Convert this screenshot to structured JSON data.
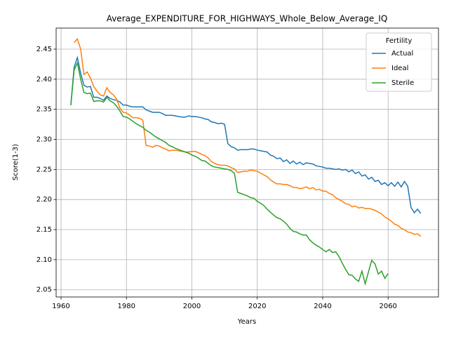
{
  "chart_data": {
    "type": "line",
    "title": "Average_EXPENDITURE_FOR_HIGHWAYS_Whole_Below_Average_IQ",
    "x_label": "Years",
    "y_label": "Score(1-3)",
    "legend_title": "Fertility",
    "legend": "upper right",
    "grid": true,
    "x": [
      1963,
      1964,
      1965,
      1966,
      1967,
      1968,
      1969,
      1970,
      1971,
      1972,
      1973,
      1974,
      1975,
      1976,
      1977,
      1978,
      1979,
      1980,
      1981,
      1982,
      1983,
      1984,
      1985,
      1986,
      1987,
      1988,
      1989,
      1990,
      1991,
      1992,
      1993,
      1994,
      1995,
      1996,
      1997,
      1998,
      1999,
      2000,
      2001,
      2002,
      2003,
      2004,
      2005,
      2006,
      2007,
      2008,
      2009,
      2010,
      2011,
      2012,
      2013,
      2014,
      2015,
      2016,
      2017,
      2018,
      2019,
      2020,
      2021,
      2022,
      2023,
      2024,
      2025,
      2026,
      2027,
      2028,
      2029,
      2030,
      2031,
      2032,
      2033,
      2034,
      2035,
      2036,
      2037,
      2038,
      2039,
      2040,
      2041,
      2042,
      2043,
      2044,
      2045,
      2046,
      2047,
      2048,
      2049,
      2050,
      2051,
      2052,
      2053,
      2054,
      2055,
      2056,
      2057,
      2058,
      2059,
      2060,
      2061,
      2062,
      2063,
      2064,
      2065,
      2066,
      2067,
      2068,
      2069,
      2070
    ],
    "series": [
      {
        "name": "Actual",
        "color": "#1f77b4",
        "values": [
          2.357,
          2.42,
          2.436,
          2.41,
          2.39,
          2.387,
          2.388,
          2.37,
          2.37,
          2.368,
          2.365,
          2.372,
          2.368,
          2.366,
          2.365,
          2.362,
          2.357,
          2.357,
          2.355,
          2.354,
          2.354,
          2.354,
          2.354,
          2.349,
          2.347,
          2.345,
          2.345,
          2.345,
          2.343,
          2.34,
          2.34,
          2.34,
          2.339,
          2.338,
          2.337,
          2.337,
          2.339,
          2.338,
          2.338,
          2.337,
          2.336,
          2.334,
          2.333,
          2.329,
          2.328,
          2.326,
          2.327,
          2.325,
          2.293,
          2.288,
          2.286,
          2.282,
          2.283,
          2.283,
          2.283,
          2.284,
          2.284,
          2.282,
          2.281,
          2.28,
          2.279,
          2.274,
          2.272,
          2.268,
          2.269,
          2.263,
          2.266,
          2.26,
          2.264,
          2.259,
          2.262,
          2.258,
          2.261,
          2.26,
          2.259,
          2.256,
          2.255,
          2.254,
          2.252,
          2.252,
          2.251,
          2.25,
          2.251,
          2.249,
          2.25,
          2.246,
          2.249,
          2.243,
          2.246,
          2.239,
          2.241,
          2.234,
          2.237,
          2.23,
          2.232,
          2.225,
          2.228,
          2.223,
          2.228,
          2.222,
          2.229,
          2.221,
          2.23,
          2.222,
          2.187,
          2.178,
          2.184,
          2.177
        ]
      },
      {
        "name": "Ideal",
        "color": "#ff7f0e",
        "values": [
          null,
          2.461,
          2.467,
          2.45,
          2.408,
          2.412,
          2.402,
          2.388,
          2.38,
          2.374,
          2.372,
          2.386,
          2.378,
          2.374,
          2.367,
          2.352,
          2.345,
          2.344,
          2.34,
          2.336,
          2.336,
          2.335,
          2.332,
          2.29,
          2.289,
          2.287,
          2.29,
          2.289,
          2.286,
          2.284,
          2.281,
          2.282,
          2.282,
          2.281,
          2.28,
          2.279,
          2.279,
          2.28,
          2.28,
          2.278,
          2.275,
          2.273,
          2.269,
          2.263,
          2.26,
          2.258,
          2.257,
          2.257,
          2.256,
          2.253,
          2.251,
          2.245,
          2.246,
          2.247,
          2.247,
          2.249,
          2.248,
          2.247,
          2.244,
          2.241,
          2.238,
          2.233,
          2.229,
          2.226,
          2.226,
          2.225,
          2.225,
          2.223,
          2.22,
          2.22,
          2.218,
          2.219,
          2.221,
          2.218,
          2.22,
          2.216,
          2.217,
          2.214,
          2.214,
          2.21,
          2.208,
          2.203,
          2.2,
          2.197,
          2.193,
          2.192,
          2.188,
          2.189,
          2.186,
          2.187,
          2.185,
          2.185,
          2.184,
          2.182,
          2.179,
          2.176,
          2.171,
          2.168,
          2.164,
          2.159,
          2.157,
          2.152,
          2.15,
          2.146,
          2.145,
          2.142,
          2.143,
          2.139
        ]
      },
      {
        "name": "Sterile",
        "color": "#2ca02c",
        "values": [
          2.357,
          2.415,
          2.427,
          2.4,
          2.378,
          2.376,
          2.377,
          2.363,
          2.364,
          2.364,
          2.362,
          2.37,
          2.364,
          2.361,
          2.355,
          2.347,
          2.338,
          2.337,
          2.334,
          2.33,
          2.326,
          2.323,
          2.32,
          2.315,
          2.312,
          2.308,
          2.304,
          2.301,
          2.298,
          2.295,
          2.29,
          2.288,
          2.285,
          2.283,
          2.281,
          2.279,
          2.277,
          2.274,
          2.272,
          2.269,
          2.265,
          2.264,
          2.26,
          2.256,
          2.254,
          2.253,
          2.252,
          2.251,
          2.25,
          2.248,
          2.244,
          2.212,
          2.21,
          2.208,
          2.206,
          2.203,
          2.202,
          2.197,
          2.194,
          2.19,
          2.184,
          2.179,
          2.174,
          2.17,
          2.168,
          2.164,
          2.159,
          2.152,
          2.147,
          2.146,
          2.143,
          2.141,
          2.141,
          2.133,
          2.128,
          2.124,
          2.121,
          2.117,
          2.113,
          2.117,
          2.112,
          2.113,
          2.105,
          2.094,
          2.084,
          2.075,
          2.074,
          2.068,
          2.064,
          2.081,
          2.06,
          2.08,
          2.099,
          2.093,
          2.076,
          2.081,
          2.069,
          2.077,
          null,
          null,
          null,
          null,
          null,
          null,
          null,
          null,
          null,
          null
        ]
      }
    ],
    "xlim": [
      1958.5,
      2075.4
    ],
    "xticks": [
      1960,
      1980,
      2000,
      2020,
      2040,
      2060
    ],
    "ylim": [
      2.038,
      2.485
    ],
    "yticks": [
      2.05,
      {
        "value": 2.1,
        "label": "2.10"
      },
      2.15,
      {
        "value": 2.2,
        "label": "2.20"
      },
      2.25,
      {
        "value": 2.3,
        "label": "2.30"
      },
      2.35,
      {
        "value": 2.4,
        "label": "2.40"
      },
      2.45
    ]
  }
}
